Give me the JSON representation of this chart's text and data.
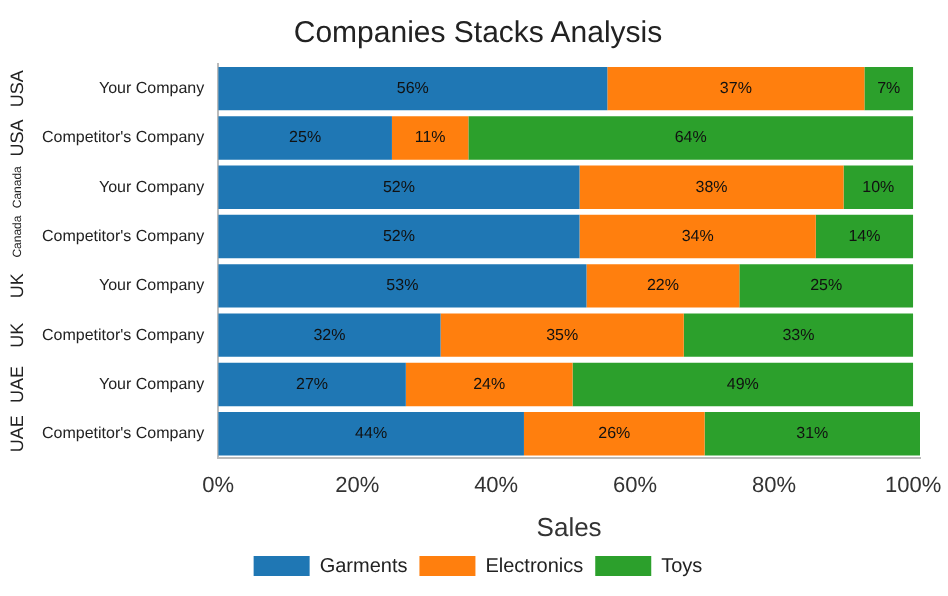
{
  "chart_data": {
    "type": "bar",
    "orientation": "horizontal",
    "stacked": true,
    "title": "Companies Stacks Analysis",
    "xlabel": "Sales",
    "categories": [
      "Your Company",
      "Competitor's Company",
      "Your Company",
      "Competitor's Company",
      "Your Company",
      "Competitor's Company",
      "Your Company",
      "Competitor's Company"
    ],
    "annotations": [
      "USA",
      "USA",
      "Canada",
      "Canada",
      "UK",
      "UK",
      "UAE",
      "UAE"
    ],
    "series": [
      {
        "name": "Garments",
        "color": "#1f77b4",
        "values": [
          56,
          25,
          52,
          52,
          53,
          32,
          27,
          44
        ],
        "value_labels": [
          "56%",
          "25%",
          "52%",
          "52%",
          "53%",
          "32%",
          "27%",
          "44%"
        ]
      },
      {
        "name": "Electronics",
        "color": "#ff7f0e",
        "values": [
          37,
          11,
          38,
          34,
          22,
          35,
          24,
          26
        ],
        "value_labels": [
          "37%",
          "11%",
          "38%",
          "34%",
          "22%",
          "35%",
          "24%",
          "26%"
        ]
      },
      {
        "name": "Toys",
        "color": "#2ca02c",
        "values": [
          7,
          64,
          10,
          14,
          25,
          33,
          49,
          31
        ],
        "value_labels": [
          "7%",
          "64%",
          "10%",
          "14%",
          "25%",
          "33%",
          "49%",
          "31%"
        ]
      }
    ],
    "xlim": [
      0,
      101
    ],
    "xticks": [
      {
        "value": 0,
        "label": "0%"
      },
      {
        "value": 20,
        "label": "20%"
      },
      {
        "value": 40,
        "label": "40%"
      },
      {
        "value": 60,
        "label": "60%"
      },
      {
        "value": 80,
        "label": "80%"
      },
      {
        "value": 100,
        "label": "100%"
      }
    ],
    "grid": false,
    "legend": "bottom"
  }
}
